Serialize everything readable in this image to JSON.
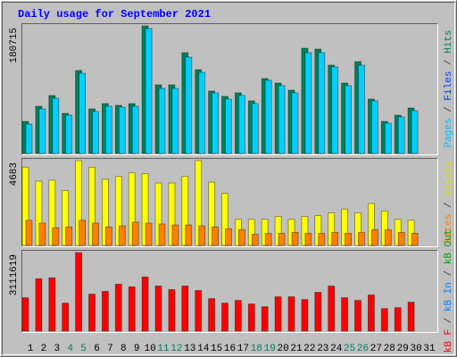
{
  "header": {
    "title": "Daily usage for September 2021"
  },
  "chart_data": [
    {
      "type": "bar",
      "ylim": [
        0,
        180715
      ],
      "yticks": [
        180715
      ],
      "side_label": [
        {
          "text": "Pages",
          "color": "#00c0ff"
        },
        {
          "text": " / ",
          "color": "#404040"
        },
        {
          "text": "Files",
          "color": "#0040ff"
        },
        {
          "text": " / ",
          "color": "#404040"
        },
        {
          "text": "Hits",
          "color": "#00805c"
        }
      ],
      "series": [
        {
          "name": "Hits",
          "color": "#00805c",
          "values": [
            45494,
            66976,
            82141,
            56867,
            117525,
            63186,
            70768,
            68241,
            70768,
            180715,
            97306,
            97306,
            142801,
            118789,
            88460,
            80878,
            85933,
            74560,
            106152,
            99834,
            89724,
            149119,
            147855,
            125107,
            99834,
            130163,
            77087,
            45494,
            54340,
            64450,
            null
          ]
        },
        {
          "name": "Files",
          "color": "#00d0ff",
          "values": [
            41703,
            63186,
            78350,
            54340,
            113734,
            59395,
            66976,
            65714,
            66976,
            176924,
            92251,
            92251,
            136482,
            114998,
            85933,
            77087,
            82141,
            70768,
            103624,
            96043,
            85933,
            142801,
            142801,
            122580,
            96043,
            125107,
            74560,
            42967,
            51812,
            60659,
            null
          ]
        }
      ]
    },
    {
      "type": "bar",
      "ylim": [
        0,
        4683
      ],
      "yticks": [
        4683
      ],
      "side_label": [
        {
          "text": "Sites",
          "color": "#ff8000"
        },
        {
          "text": " / ",
          "color": "#404040"
        },
        {
          "text": "Visits",
          "color": "#e0e000"
        }
      ],
      "series": [
        {
          "name": "Visits",
          "color": "#ffff00",
          "values": [
            4323,
            3551,
            3602,
            3036,
            4683,
            4323,
            3654,
            3808,
            4014,
            3963,
            3448,
            3448,
            3808,
            4683,
            3499,
            2882,
            1441,
            1441,
            1441,
            1595,
            1441,
            1595,
            1647,
            1801,
            2007,
            1801,
            2316,
            1904,
            1441,
            1389,
            null
          ]
        },
        {
          "name": "Sites",
          "color": "#ff8000",
          "values": [
            1389,
            1235,
            978,
            1029,
            1389,
            1235,
            1029,
            1081,
            1287,
            1235,
            1184,
            1132,
            1132,
            1081,
            1029,
            926,
            875,
            618,
            669,
            669,
            720,
            669,
            669,
            720,
            669,
            720,
            875,
            875,
            720,
            669,
            null
          ]
        }
      ]
    },
    {
      "type": "bar",
      "ylim": [
        0,
        3111619
      ],
      "yticks": [
        3111619
      ],
      "side_label": [
        {
          "text": "kB F",
          "color": "#ff0000"
        },
        {
          "text": " / ",
          "color": "#404040"
        },
        {
          "text": "kB In",
          "color": "#0080ff"
        },
        {
          "text": " / ",
          "color": "#404040"
        },
        {
          "text": "kB Out",
          "color": "#00a000"
        }
      ],
      "categories": [
        "1",
        "2",
        "3",
        "4",
        "5",
        "6",
        "7",
        "8",
        "9",
        "10",
        "11",
        "12",
        "13",
        "14",
        "15",
        "16",
        "17",
        "18",
        "19",
        "20",
        "21",
        "22",
        "23",
        "24",
        "25",
        "26",
        "27",
        "28",
        "29",
        "30",
        "31"
      ],
      "category_colors": [
        "#000000",
        "#000000",
        "#000000",
        "#00805c",
        "#00805c",
        "#000000",
        "#000000",
        "#000000",
        "#000000",
        "#000000",
        "#00805c",
        "#00805c",
        "#000000",
        "#000000",
        "#000000",
        "#000000",
        "#000000",
        "#00805c",
        "#00805c",
        "#000000",
        "#000000",
        "#000000",
        "#000000",
        "#000000",
        "#00805c",
        "#00805c",
        "#000000",
        "#000000",
        "#000000",
        "#000000",
        "#000000"
      ],
      "series": [
        {
          "name": "kB F",
          "color": "#ff0000",
          "values": [
            1323000,
            2074000,
            2110000,
            1109000,
            3111619,
            1466000,
            1574000,
            1860000,
            1753000,
            2146000,
            1788000,
            1645000,
            1788000,
            1609000,
            1288000,
            1109000,
            1216000,
            1073000,
            966000,
            1359000,
            1359000,
            1252000,
            1538000,
            1788000,
            1323000,
            1216000,
            1431000,
            894000,
            930000,
            1145000,
            null
          ]
        }
      ]
    }
  ]
}
